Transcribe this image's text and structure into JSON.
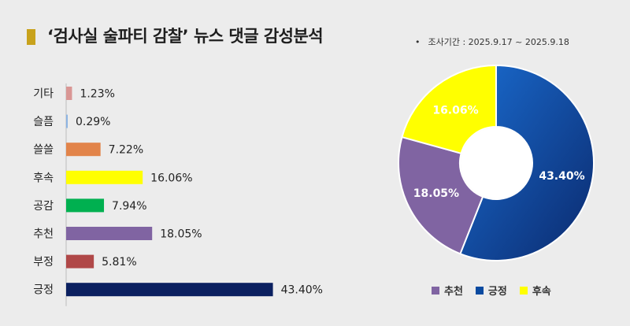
{
  "title": "‘검사실 술파티 감찰’ 뉴스 댓글 감성분석",
  "period": "조사기간 : 2025.9.17 ~ 2025.9.18",
  "chart_data": [
    {
      "type": "bar",
      "orientation": "horizontal",
      "categories": [
        "기타",
        "슬픔",
        "쓸쓸",
        "후속",
        "공감",
        "추천",
        "부정",
        "긍정"
      ],
      "values": [
        1.23,
        0.29,
        7.22,
        16.06,
        7.94,
        18.05,
        5.81,
        43.4
      ],
      "value_labels": [
        "1.23%",
        "0.29%",
        "7.22%",
        "16.06%",
        "7.94%",
        "18.05%",
        "5.81%",
        "43.40%"
      ],
      "colors": [
        "#d99694",
        "#8db4e2",
        "#e2844a",
        "#ffff00",
        "#00b050",
        "#8064a2",
        "#b04848",
        "#0b2060"
      ],
      "unit": "%"
    },
    {
      "type": "pie",
      "donut": true,
      "labels": [
        "긍정",
        "추천",
        "후속"
      ],
      "values": [
        43.4,
        18.05,
        16.06
      ],
      "value_labels": [
        "43.40%",
        "18.05%",
        "16.06%"
      ],
      "colors": [
        "#0a4aa0",
        "#8064a2",
        "#ffff00"
      ],
      "label_colors": [
        "#ffffff",
        "#ffffff",
        "#ffffff"
      ],
      "legend": [
        "추천",
        "긍정",
        "후속"
      ],
      "legend_colors": [
        "#8064a2",
        "#0a4aa0",
        "#ffff00"
      ],
      "legend_position": "bottom"
    }
  ]
}
